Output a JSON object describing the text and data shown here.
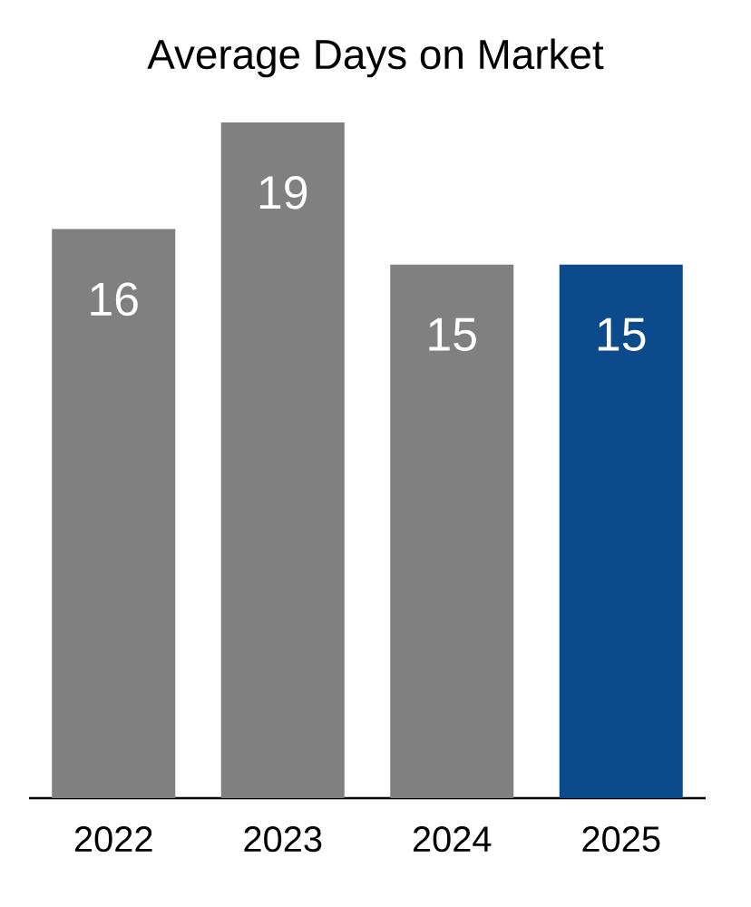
{
  "chart_data": {
    "type": "bar",
    "title": "Average Days on Market",
    "categories": [
      "2022",
      "2023",
      "2024",
      "2025"
    ],
    "values": [
      16,
      19,
      15,
      15
    ],
    "colors": [
      "#808080",
      "#808080",
      "#808080",
      "#0b4a8b"
    ],
    "data_labels": true
  }
}
